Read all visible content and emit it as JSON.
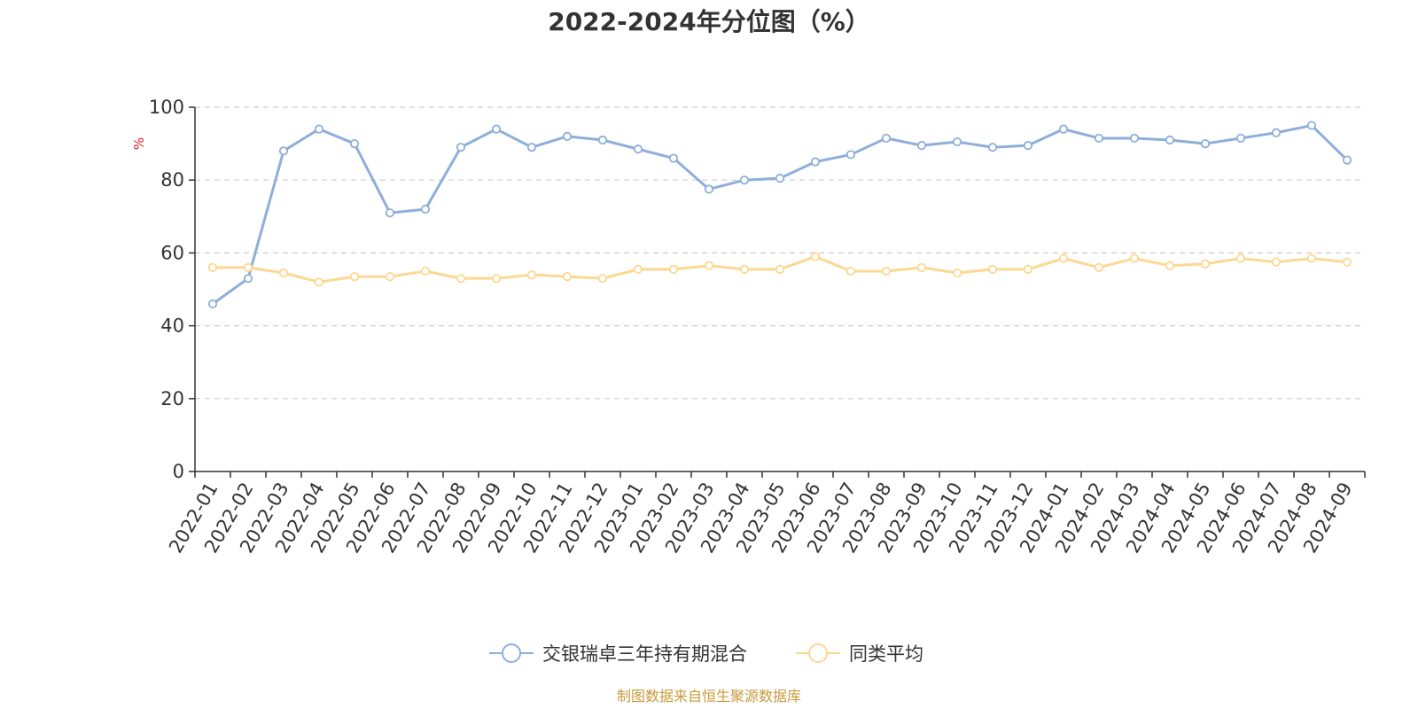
{
  "colors": {
    "series1": "#8eaedb",
    "series2": "#fcd891",
    "axis": "#333333",
    "grid": "#cccccc",
    "ylabel": "#e02020",
    "source": "#c89a3c"
  },
  "source_note": "制图数据来自恒生聚源数据库",
  "chart_data": {
    "type": "line",
    "title": "2022-2024年分位图（%）",
    "xlabel": "",
    "ylabel": "%",
    "ylim": [
      0,
      100
    ],
    "yticks": [
      0,
      20,
      40,
      60,
      80,
      100
    ],
    "grid": true,
    "legend_position": "bottom-center",
    "categories": [
      "2022-01",
      "2022-02",
      "2022-03",
      "2022-04",
      "2022-05",
      "2022-06",
      "2022-07",
      "2022-08",
      "2022-09",
      "2022-10",
      "2022-11",
      "2022-12",
      "2023-01",
      "2023-02",
      "2023-03",
      "2023-04",
      "2023-05",
      "2023-06",
      "2023-07",
      "2023-08",
      "2023-09",
      "2023-10",
      "2023-11",
      "2023-12",
      "2024-01",
      "2024-02",
      "2024-03",
      "2024-04",
      "2024-05",
      "2024-06",
      "2024-07",
      "2024-08",
      "2024-09"
    ],
    "series": [
      {
        "name": "交银瑞卓三年持有期混合",
        "color": "#8eaedb",
        "values": [
          46,
          53,
          88,
          94,
          90,
          71,
          72,
          89,
          94,
          89,
          92,
          91,
          88.5,
          86,
          77.5,
          80,
          80.5,
          85,
          87,
          91.5,
          89.5,
          90.5,
          89,
          89.5,
          94,
          91.5,
          91.5,
          91,
          90,
          91.5,
          93,
          95,
          85.5
        ]
      },
      {
        "name": "同类平均",
        "color": "#fcd891",
        "values": [
          56,
          56,
          54.5,
          52,
          53.5,
          53.5,
          55,
          53,
          53,
          54,
          53.5,
          53,
          55.5,
          55.5,
          56.5,
          55.5,
          55.5,
          59,
          55,
          55,
          56,
          54.5,
          55.5,
          55.5,
          58.5,
          56,
          58.5,
          56.5,
          57,
          58.5,
          57.5,
          58.5,
          57.5
        ]
      }
    ]
  }
}
